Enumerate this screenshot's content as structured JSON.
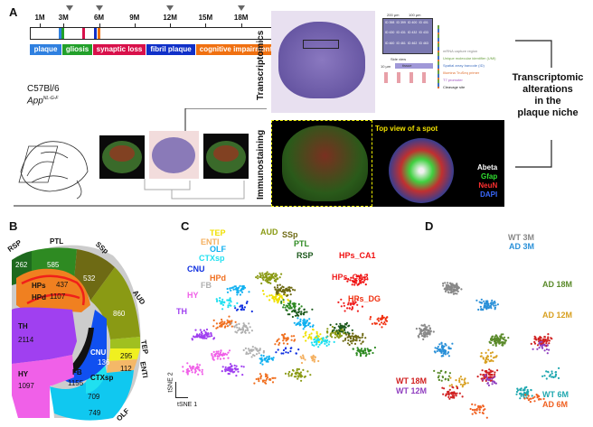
{
  "panels": {
    "a": "A",
    "b": "B",
    "c": "C",
    "d": "D"
  },
  "timeline": {
    "ticks": [
      {
        "label": "1M",
        "month": 1
      },
      {
        "label": "3M",
        "month": 3
      },
      {
        "label": "6M",
        "month": 6
      },
      {
        "label": "9M",
        "month": 9
      },
      {
        "label": "12M",
        "month": 12
      },
      {
        "label": "15M",
        "month": 15
      },
      {
        "label": "18M",
        "month": 18
      }
    ],
    "sampled_months": [
      3.5,
      6,
      12,
      18
    ],
    "markers": [
      {
        "month": 2.6,
        "color": "#2f80e0"
      },
      {
        "month": 2.85,
        "color": "#22a02a"
      },
      {
        "month": 4.6,
        "color": "#d8104a"
      },
      {
        "month": 5.6,
        "color": "#1030c8"
      },
      {
        "month": 5.85,
        "color": "#f07010"
      }
    ],
    "stages": [
      {
        "label": "plaque",
        "color": "#2f80e0"
      },
      {
        "label": "gliosis",
        "color": "#22a02a"
      },
      {
        "label": "synaptic loss",
        "color": "#d8104a"
      },
      {
        "label": "fibril plaque",
        "color": "#1030c8"
      },
      {
        "label": "cognitive impairment",
        "color": "#f07010"
      }
    ]
  },
  "mouse": {
    "strain": "C57Bl/6",
    "model": "App",
    "model_sup": "NL-G-F"
  },
  "transcriptomics": {
    "label": "Transcriptomics",
    "scale1": "200 µm",
    "scale2": "100 µm",
    "spot_ids": [
      "ID 398",
      "ID 399",
      "ID 400",
      "ID 401",
      "ID 430",
      "ID 431",
      "ID 432",
      "ID 433",
      "ID 460",
      "ID 461",
      "ID 462",
      "ID 463"
    ],
    "side_view": "Side view",
    "tissue": "tissue",
    "depth": "10 µm",
    "legend": [
      {
        "t": "mRNA capture region",
        "c": "#888"
      },
      {
        "t": "Unique molecular identifier (UMI)",
        "c": "#6aa040"
      },
      {
        "t": "Spatial array barcode (ID)",
        "c": "#4070c0"
      },
      {
        "t": "Illumina TruSeq primer",
        "c": "#e07030"
      },
      {
        "t": "T7 promoter",
        "c": "#a050c0"
      },
      {
        "t": "Cleavage site",
        "c": "#222"
      }
    ]
  },
  "immunostaining": {
    "label": "Immunostaining",
    "top_view": "Top view of a spot",
    "markers": [
      {
        "t": "Abeta",
        "c": "#ffffff"
      },
      {
        "t": "Gfap",
        "c": "#30e030"
      },
      {
        "t": "NeuN",
        "c": "#ff3030"
      },
      {
        "t": "DAPI",
        "c": "#3a6aff"
      }
    ]
  },
  "conclusion": [
    "Transcriptomic",
    "alterations",
    "in the",
    "plaque niche"
  ],
  "regions": [
    {
      "name": "RSP",
      "count": "262",
      "color": "#1e6a1e"
    },
    {
      "name": "PTL",
      "count": "585",
      "color": "#2e8a22"
    },
    {
      "name": "SSp",
      "count": "532",
      "color": "#6e6a14"
    },
    {
      "name": "AUD",
      "count": "860",
      "color": "#8a9a14"
    },
    {
      "name": "TEP",
      "count": "",
      "color": "#a0c020"
    },
    {
      "name": "",
      "count": "295",
      "color": "#f0f020"
    },
    {
      "name": "ENTI",
      "count": "112",
      "color": "#f4b868"
    },
    {
      "name": "OLF",
      "count": "749",
      "color": "#10c8f0"
    },
    {
      "name": "CTXsp",
      "count": "709",
      "color": "#20e0f0"
    },
    {
      "name": "CNU",
      "count": "136",
      "color": "#1050f0"
    },
    {
      "name": "FB",
      "count": "1155",
      "color": "#111111"
    },
    {
      "name": "HPs",
      "count": "437",
      "color": "#f0201a"
    },
    {
      "name": "HPd",
      "count": "1107",
      "color": "#f08020"
    },
    {
      "name": "TH",
      "count": "2114",
      "color": "#a040f0"
    },
    {
      "name": "HY",
      "count": "1097",
      "color": "#f060e8"
    }
  ],
  "chart_data": [
    {
      "type": "scatter",
      "title": "C",
      "xlabel": "tSNE 1",
      "ylabel": "tSNE 2",
      "series": [
        {
          "name": "TEP",
          "color": "#f0e000",
          "clusters": [
            [
              45,
              35,
              40
            ],
            [
              62,
              60,
              30
            ]
          ]
        },
        {
          "name": "ENTI",
          "color": "#f4b060",
          "clusters": [
            [
              60,
              75,
              20
            ]
          ]
        },
        {
          "name": "AUD",
          "color": "#8a9a14",
          "clusters": [
            [
              42,
              22,
              70
            ],
            [
              72,
              58,
              50
            ],
            [
              55,
              85,
              40
            ]
          ]
        },
        {
          "name": "SSp",
          "color": "#6e6a14",
          "clusters": [
            [
              48,
              30,
              60
            ],
            [
              80,
              62,
              50
            ]
          ]
        },
        {
          "name": "PTL",
          "color": "#2e8a22",
          "clusters": [
            [
              52,
              40,
              40
            ],
            [
              85,
              70,
              40
            ]
          ]
        },
        {
          "name": "RSP",
          "color": "#1e5a1e",
          "clusters": [
            [
              55,
              45,
              30
            ],
            [
              75,
              55,
              40
            ]
          ]
        },
        {
          "name": "HPs_CA1",
          "color": "#f01010",
          "clusters": [
            [
              82,
              24,
              40
            ]
          ]
        },
        {
          "name": "HPs_CA3",
          "color": "#f02020",
          "clusters": [
            [
              78,
              40,
              30
            ]
          ]
        },
        {
          "name": "HPs_DG",
          "color": "#f03010",
          "clusters": [
            [
              92,
              50,
              30
            ]
          ]
        },
        {
          "name": "OLF",
          "color": "#10b0f0",
          "clusters": [
            [
              28,
              30,
              40
            ],
            [
              58,
              52,
              40
            ],
            [
              40,
              75,
              30
            ]
          ]
        },
        {
          "name": "CTXsp",
          "color": "#20e0f0",
          "clusters": [
            [
              22,
              38,
              30
            ],
            [
              65,
              64,
              40
            ]
          ]
        },
        {
          "name": "CNU",
          "color": "#1030e0",
          "clusters": [
            [
              30,
              42,
              15
            ],
            [
              50,
              70,
              15
            ]
          ]
        },
        {
          "name": "HPd",
          "color": "#f07020",
          "clusters": [
            [
              22,
              52,
              40
            ],
            [
              48,
              62,
              30
            ],
            [
              40,
              88,
              30
            ]
          ]
        },
        {
          "name": "FB",
          "color": "#b0b0b0",
          "clusters": [
            [
              30,
              55,
              40
            ],
            [
              35,
              70,
              30
            ]
          ]
        },
        {
          "name": "HY",
          "color": "#f060e8",
          "clusters": [
            [
              20,
              72,
              40
            ],
            [
              8,
              82,
              40
            ]
          ]
        },
        {
          "name": "TH",
          "color": "#a040f0",
          "clusters": [
            [
              12,
              60,
              60
            ],
            [
              25,
              82,
              50
            ]
          ]
        }
      ]
    },
    {
      "type": "scatter",
      "title": "D",
      "series": [
        {
          "name": "WT 3M",
          "color": "#888888",
          "clusters": [
            [
              30,
              25,
              90
            ],
            [
              15,
              50,
              60
            ]
          ]
        },
        {
          "name": "AD 3M",
          "color": "#2a90d8",
          "clusters": [
            [
              50,
              35,
              70
            ],
            [
              25,
              60,
              60
            ]
          ]
        },
        {
          "name": "AD 18M",
          "color": "#5a8a2a",
          "clusters": [
            [
              55,
              55,
              80
            ],
            [
              25,
              75,
              20
            ]
          ]
        },
        {
          "name": "AD 12M",
          "color": "#d8a020",
          "clusters": [
            [
              50,
              65,
              30
            ],
            [
              35,
              78,
              20
            ]
          ]
        },
        {
          "name": "WT 18M",
          "color": "#d02020",
          "clusters": [
            [
              80,
              55,
              60
            ],
            [
              50,
              75,
              60
            ],
            [
              30,
              85,
              40
            ]
          ]
        },
        {
          "name": "WT 12M",
          "color": "#9040c0",
          "clusters": [
            [
              80,
              58,
              20
            ],
            [
              52,
              78,
              20
            ]
          ]
        },
        {
          "name": "WT 6M",
          "color": "#20a8b0",
          "clusters": [
            [
              70,
              85,
              40
            ],
            [
              85,
              75,
              20
            ]
          ]
        },
        {
          "name": "AD 6M",
          "color": "#f06020",
          "clusters": [
            [
              45,
              95,
              30
            ],
            [
              75,
              88,
              20
            ]
          ]
        }
      ]
    }
  ]
}
